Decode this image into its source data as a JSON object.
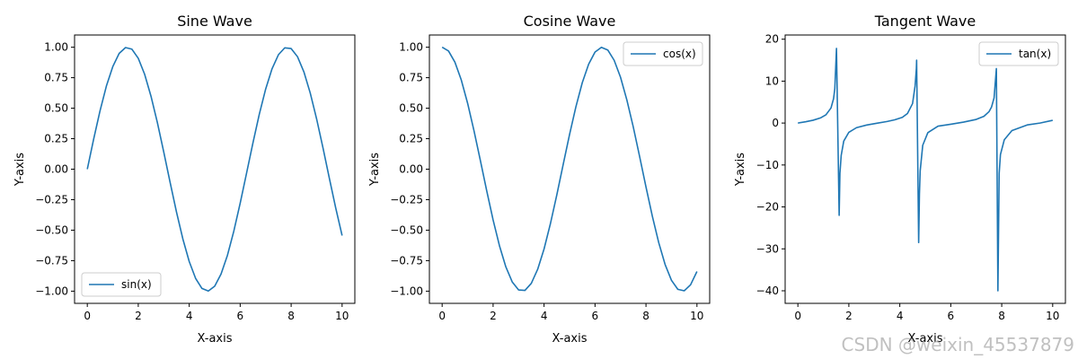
{
  "chart_data": [
    {
      "type": "line",
      "title": "Sine Wave",
      "xlabel": "X-axis",
      "ylabel": "Y-axis",
      "xlim": [
        -0.5,
        10.5
      ],
      "ylim": [
        -1.1,
        1.1
      ],
      "xticks": [
        0,
        2,
        4,
        6,
        8,
        10
      ],
      "xtick_labels": [
        "0",
        "2",
        "4",
        "6",
        "8",
        "10"
      ],
      "yticks": [
        1.0,
        0.75,
        0.5,
        0.25,
        0.0,
        -0.25,
        -0.5,
        -0.75,
        -1.0
      ],
      "ytick_labels": [
        "1.00",
        "0.75",
        "0.50",
        "0.25",
        "0.00",
        "−0.25",
        "−0.50",
        "−0.75",
        "−1.00"
      ],
      "legend_position": "lower-left",
      "grid": false,
      "series": [
        {
          "name": "sin(x)",
          "color": "#1f77b4",
          "x": [
            0,
            0.25,
            0.5,
            0.75,
            1,
            1.25,
            1.5,
            1.75,
            2,
            2.25,
            2.5,
            2.75,
            3,
            3.25,
            3.5,
            3.75,
            4,
            4.25,
            4.5,
            4.75,
            5,
            5.25,
            5.5,
            5.75,
            6,
            6.25,
            6.5,
            6.75,
            7,
            7.25,
            7.5,
            7.75,
            8,
            8.25,
            8.5,
            8.75,
            9,
            9.25,
            9.5,
            9.75,
            10
          ],
          "y": [
            0,
            0.247,
            0.479,
            0.682,
            0.841,
            0.949,
            0.997,
            0.984,
            0.909,
            0.778,
            0.598,
            0.382,
            0.141,
            -0.108,
            -0.351,
            -0.572,
            -0.757,
            -0.895,
            -0.978,
            -0.999,
            -0.959,
            -0.859,
            -0.706,
            -0.508,
            -0.279,
            -0.033,
            0.215,
            0.45,
            0.657,
            0.823,
            0.938,
            0.995,
            0.989,
            0.922,
            0.798,
            0.624,
            0.412,
            0.174,
            -0.075,
            -0.319,
            -0.544
          ]
        }
      ]
    },
    {
      "type": "line",
      "title": "Cosine Wave",
      "xlabel": "X-axis",
      "ylabel": "Y-axis",
      "xlim": [
        -0.5,
        10.5
      ],
      "ylim": [
        -1.1,
        1.1
      ],
      "xticks": [
        0,
        2,
        4,
        6,
        8,
        10
      ],
      "xtick_labels": [
        "0",
        "2",
        "4",
        "6",
        "8",
        "10"
      ],
      "yticks": [
        1.0,
        0.75,
        0.5,
        0.25,
        0.0,
        -0.25,
        -0.5,
        -0.75,
        -1.0
      ],
      "ytick_labels": [
        "1.00",
        "0.75",
        "0.50",
        "0.25",
        "0.00",
        "−0.25",
        "−0.50",
        "−0.75",
        "−1.00"
      ],
      "legend_position": "top-right",
      "grid": false,
      "series": [
        {
          "name": "cos(x)",
          "color": "#1f77b4",
          "x": [
            0,
            0.25,
            0.5,
            0.75,
            1,
            1.25,
            1.5,
            1.75,
            2,
            2.25,
            2.5,
            2.75,
            3,
            3.25,
            3.5,
            3.75,
            4,
            4.25,
            4.5,
            4.75,
            5,
            5.25,
            5.5,
            5.75,
            6,
            6.25,
            6.5,
            6.75,
            7,
            7.25,
            7.5,
            7.75,
            8,
            8.25,
            8.5,
            8.75,
            9,
            9.25,
            9.5,
            9.75,
            10
          ],
          "y": [
            1,
            0.969,
            0.878,
            0.732,
            0.54,
            0.315,
            0.071,
            -0.178,
            -0.416,
            -0.628,
            -0.801,
            -0.924,
            -0.99,
            -0.994,
            -0.936,
            -0.82,
            -0.654,
            -0.446,
            -0.211,
            0.038,
            0.284,
            0.512,
            0.709,
            0.861,
            0.96,
            0.999,
            0.977,
            0.893,
            0.754,
            0.567,
            0.347,
            0.104,
            -0.146,
            -0.386,
            -0.602,
            -0.781,
            -0.911,
            -0.985,
            -0.997,
            -0.948,
            -0.839
          ]
        }
      ]
    },
    {
      "type": "line",
      "title": "Tangent Wave",
      "xlabel": "X-axis",
      "ylabel": "Y-axis",
      "xlim": [
        -0.5,
        10.5
      ],
      "ylim": [
        -43,
        21
      ],
      "xticks": [
        0,
        2,
        4,
        6,
        8,
        10
      ],
      "xtick_labels": [
        "0",
        "2",
        "4",
        "6",
        "8",
        "10"
      ],
      "yticks": [
        20,
        10,
        0,
        -10,
        -20,
        -30,
        -40
      ],
      "ytick_labels": [
        "20",
        "10",
        "0",
        "−10",
        "−20",
        "−30",
        "−40"
      ],
      "legend_position": "top-right",
      "grid": false,
      "series": [
        {
          "name": "tan(x)",
          "color": "#1f77b4",
          "x": [
            0,
            0.3,
            0.6,
            0.9,
            1.1,
            1.3,
            1.4,
            1.45,
            1.515,
            1.62,
            1.65,
            1.7,
            1.8,
            2.0,
            2.3,
            2.7,
            3.1,
            3.5,
            3.8,
            4.1,
            4.3,
            4.5,
            4.6,
            4.65,
            4.66,
            4.74,
            4.77,
            4.8,
            4.9,
            5.1,
            5.5,
            6.0,
            6.5,
            7.0,
            7.3,
            7.5,
            7.6,
            7.7,
            7.79,
            7.85,
            7.9,
            7.95,
            8.1,
            8.4,
            9.0,
            9.5,
            10
          ],
          "y": [
            0,
            0.31,
            0.68,
            1.26,
            1.96,
            3.6,
            5.8,
            8.2,
            17.8,
            -22,
            -12,
            -7.7,
            -4.3,
            -2.2,
            -1.1,
            -0.47,
            -0.04,
            0.37,
            0.77,
            1.37,
            2.28,
            4.64,
            8.86,
            13,
            15,
            -28.5,
            -17,
            -11.4,
            -5.3,
            -2.3,
            -0.74,
            -0.29,
            0.22,
            0.87,
            1.6,
            2.71,
            3.82,
            6.0,
            13,
            -40,
            -12,
            -7.5,
            -4.0,
            -1.8,
            -0.45,
            0.0,
            0.65
          ]
        }
      ]
    }
  ],
  "watermark": "CSDN @weixin_45537879"
}
